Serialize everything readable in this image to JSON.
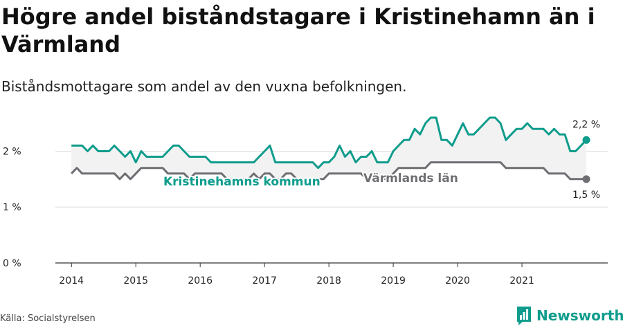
{
  "chart_data": {
    "type": "line",
    "title": "Högre andel biståndstagare i Kristinehamn än i Värmland",
    "subtitle": "Biståndsmottagare som andel av den vuxna befolkningen.",
    "ylim": [
      0,
      2.6
    ],
    "yticks": [
      {
        "value": 0,
        "label": "0 %"
      },
      {
        "value": 1,
        "label": "1 %"
      },
      {
        "value": 2,
        "label": "2 %"
      }
    ],
    "xlim": [
      "2013-10",
      "2022-05"
    ],
    "xticks": [
      {
        "value": "2014-01",
        "label": "2014"
      },
      {
        "value": "2015-01",
        "label": "2015"
      },
      {
        "value": "2016-01",
        "label": "2016"
      },
      {
        "value": "2017-01",
        "label": "2017"
      },
      {
        "value": "2018-01",
        "label": "2018"
      },
      {
        "value": "2019-01",
        "label": "2019"
      },
      {
        "value": "2020-01",
        "label": "2020"
      },
      {
        "value": "2021-01",
        "label": "2021"
      }
    ],
    "series": [
      {
        "name": "Kristinehamns kommun",
        "color": "#0f9c8c",
        "end_label": "2,2 %",
        "points": [
          [
            "2014-01",
            2.1
          ],
          [
            "2014-02",
            2.1
          ],
          [
            "2014-03",
            2.1
          ],
          [
            "2014-04",
            2.0
          ],
          [
            "2014-05",
            2.1
          ],
          [
            "2014-06",
            2.0
          ],
          [
            "2014-07",
            2.0
          ],
          [
            "2014-08",
            2.0
          ],
          [
            "2014-09",
            2.1
          ],
          [
            "2014-10",
            2.0
          ],
          [
            "2014-11",
            1.9
          ],
          [
            "2014-12",
            2.0
          ],
          [
            "2015-01",
            1.8
          ],
          [
            "2015-02",
            2.0
          ],
          [
            "2015-03",
            1.9
          ],
          [
            "2015-04",
            1.9
          ],
          [
            "2015-05",
            1.9
          ],
          [
            "2015-06",
            1.9
          ],
          [
            "2015-07",
            2.0
          ],
          [
            "2015-08",
            2.1
          ],
          [
            "2015-09",
            2.1
          ],
          [
            "2015-10",
            2.0
          ],
          [
            "2015-11",
            1.9
          ],
          [
            "2015-12",
            1.9
          ],
          [
            "2016-01",
            1.9
          ],
          [
            "2016-02",
            1.9
          ],
          [
            "2016-03",
            1.8
          ],
          [
            "2016-04",
            1.8
          ],
          [
            "2016-05",
            1.8
          ],
          [
            "2016-06",
            1.8
          ],
          [
            "2016-07",
            1.8
          ],
          [
            "2016-08",
            1.8
          ],
          [
            "2016-09",
            1.8
          ],
          [
            "2016-10",
            1.8
          ],
          [
            "2016-11",
            1.8
          ],
          [
            "2016-12",
            1.9
          ],
          [
            "2017-01",
            2.0
          ],
          [
            "2017-02",
            2.1
          ],
          [
            "2017-03",
            1.8
          ],
          [
            "2017-04",
            1.8
          ],
          [
            "2017-05",
            1.8
          ],
          [
            "2017-06",
            1.8
          ],
          [
            "2017-07",
            1.8
          ],
          [
            "2017-08",
            1.8
          ],
          [
            "2017-09",
            1.8
          ],
          [
            "2017-10",
            1.8
          ],
          [
            "2017-11",
            1.7
          ],
          [
            "2017-12",
            1.8
          ],
          [
            "2018-01",
            1.8
          ],
          [
            "2018-02",
            1.9
          ],
          [
            "2018-03",
            2.1
          ],
          [
            "2018-04",
            1.9
          ],
          [
            "2018-05",
            2.0
          ],
          [
            "2018-06",
            1.8
          ],
          [
            "2018-07",
            1.9
          ],
          [
            "2018-08",
            1.9
          ],
          [
            "2018-09",
            2.0
          ],
          [
            "2018-10",
            1.8
          ],
          [
            "2018-11",
            1.8
          ],
          [
            "2018-12",
            1.8
          ],
          [
            "2019-01",
            2.0
          ],
          [
            "2019-02",
            2.1
          ],
          [
            "2019-03",
            2.2
          ],
          [
            "2019-04",
            2.2
          ],
          [
            "2019-05",
            2.4
          ],
          [
            "2019-06",
            2.3
          ],
          [
            "2019-07",
            2.5
          ],
          [
            "2019-08",
            2.6
          ],
          [
            "2019-09",
            2.6
          ],
          [
            "2019-10",
            2.2
          ],
          [
            "2019-11",
            2.2
          ],
          [
            "2019-12",
            2.1
          ],
          [
            "2020-01",
            2.3
          ],
          [
            "2020-02",
            2.5
          ],
          [
            "2020-03",
            2.3
          ],
          [
            "2020-04",
            2.3
          ],
          [
            "2020-05",
            2.4
          ],
          [
            "2020-06",
            2.5
          ],
          [
            "2020-07",
            2.6
          ],
          [
            "2020-08",
            2.6
          ],
          [
            "2020-09",
            2.5
          ],
          [
            "2020-10",
            2.2
          ],
          [
            "2020-11",
            2.3
          ],
          [
            "2020-12",
            2.4
          ],
          [
            "2021-01",
            2.4
          ],
          [
            "2021-02",
            2.5
          ],
          [
            "2021-03",
            2.4
          ],
          [
            "2021-04",
            2.4
          ],
          [
            "2021-05",
            2.4
          ],
          [
            "2021-06",
            2.3
          ],
          [
            "2021-07",
            2.4
          ],
          [
            "2021-08",
            2.3
          ],
          [
            "2021-09",
            2.3
          ],
          [
            "2021-10",
            2.0
          ],
          [
            "2021-11",
            2.0
          ],
          [
            "2021-12",
            2.1
          ],
          [
            "2022-01",
            2.2
          ]
        ]
      },
      {
        "name": "Värmlands län",
        "color": "#6e6e73",
        "end_label": "1,5 %",
        "points": [
          [
            "2014-01",
            1.6
          ],
          [
            "2014-02",
            1.7
          ],
          [
            "2014-03",
            1.6
          ],
          [
            "2014-04",
            1.6
          ],
          [
            "2014-05",
            1.6
          ],
          [
            "2014-06",
            1.6
          ],
          [
            "2014-07",
            1.6
          ],
          [
            "2014-08",
            1.6
          ],
          [
            "2014-09",
            1.6
          ],
          [
            "2014-10",
            1.5
          ],
          [
            "2014-11",
            1.6
          ],
          [
            "2014-12",
            1.5
          ],
          [
            "2015-01",
            1.6
          ],
          [
            "2015-02",
            1.7
          ],
          [
            "2015-03",
            1.7
          ],
          [
            "2015-04",
            1.7
          ],
          [
            "2015-05",
            1.7
          ],
          [
            "2015-06",
            1.7
          ],
          [
            "2015-07",
            1.6
          ],
          [
            "2015-08",
            1.6
          ],
          [
            "2015-09",
            1.6
          ],
          [
            "2015-10",
            1.6
          ],
          [
            "2015-11",
            1.5
          ],
          [
            "2015-12",
            1.6
          ],
          [
            "2016-01",
            1.6
          ],
          [
            "2016-02",
            1.6
          ],
          [
            "2016-03",
            1.6
          ],
          [
            "2016-04",
            1.6
          ],
          [
            "2016-05",
            1.6
          ],
          [
            "2016-06",
            1.5
          ],
          [
            "2016-07",
            1.5
          ],
          [
            "2016-08",
            1.5
          ],
          [
            "2016-09",
            1.5
          ],
          [
            "2016-10",
            1.5
          ],
          [
            "2016-11",
            1.6
          ],
          [
            "2016-12",
            1.5
          ],
          [
            "2017-01",
            1.6
          ],
          [
            "2017-02",
            1.6
          ],
          [
            "2017-03",
            1.5
          ],
          [
            "2017-04",
            1.5
          ],
          [
            "2017-05",
            1.6
          ],
          [
            "2017-06",
            1.6
          ],
          [
            "2017-07",
            1.5
          ],
          [
            "2017-08",
            1.5
          ],
          [
            "2017-09",
            1.5
          ],
          [
            "2017-10",
            1.5
          ],
          [
            "2017-11",
            1.5
          ],
          [
            "2017-12",
            1.5
          ],
          [
            "2018-01",
            1.6
          ],
          [
            "2018-02",
            1.6
          ],
          [
            "2018-03",
            1.6
          ],
          [
            "2018-04",
            1.6
          ],
          [
            "2018-05",
            1.6
          ],
          [
            "2018-06",
            1.6
          ],
          [
            "2018-07",
            1.6
          ],
          [
            "2018-08",
            1.5
          ],
          [
            "2018-09",
            1.5
          ],
          [
            "2018-10",
            1.5
          ],
          [
            "2018-11",
            1.5
          ],
          [
            "2018-12",
            1.5
          ],
          [
            "2019-01",
            1.6
          ],
          [
            "2019-02",
            1.7
          ],
          [
            "2019-03",
            1.7
          ],
          [
            "2019-04",
            1.7
          ],
          [
            "2019-05",
            1.7
          ],
          [
            "2019-06",
            1.7
          ],
          [
            "2019-07",
            1.7
          ],
          [
            "2019-08",
            1.8
          ],
          [
            "2019-09",
            1.8
          ],
          [
            "2019-10",
            1.8
          ],
          [
            "2019-11",
            1.8
          ],
          [
            "2019-12",
            1.8
          ],
          [
            "2020-01",
            1.8
          ],
          [
            "2020-02",
            1.8
          ],
          [
            "2020-03",
            1.8
          ],
          [
            "2020-04",
            1.8
          ],
          [
            "2020-05",
            1.8
          ],
          [
            "2020-06",
            1.8
          ],
          [
            "2020-07",
            1.8
          ],
          [
            "2020-08",
            1.8
          ],
          [
            "2020-09",
            1.8
          ],
          [
            "2020-10",
            1.7
          ],
          [
            "2020-11",
            1.7
          ],
          [
            "2020-12",
            1.7
          ],
          [
            "2021-01",
            1.7
          ],
          [
            "2021-02",
            1.7
          ],
          [
            "2021-03",
            1.7
          ],
          [
            "2021-04",
            1.7
          ],
          [
            "2021-05",
            1.7
          ],
          [
            "2021-06",
            1.6
          ],
          [
            "2021-07",
            1.6
          ],
          [
            "2021-08",
            1.6
          ],
          [
            "2021-09",
            1.6
          ],
          [
            "2021-10",
            1.5
          ],
          [
            "2021-11",
            1.5
          ],
          [
            "2021-12",
            1.5
          ],
          [
            "2022-01",
            1.5
          ]
        ]
      }
    ],
    "grid": true,
    "band_fill": "#f2f2f2"
  },
  "source": "Källa: Socialstyrelsen",
  "brand": {
    "name": "Newsworthy",
    "color": "#0f9c8c"
  }
}
